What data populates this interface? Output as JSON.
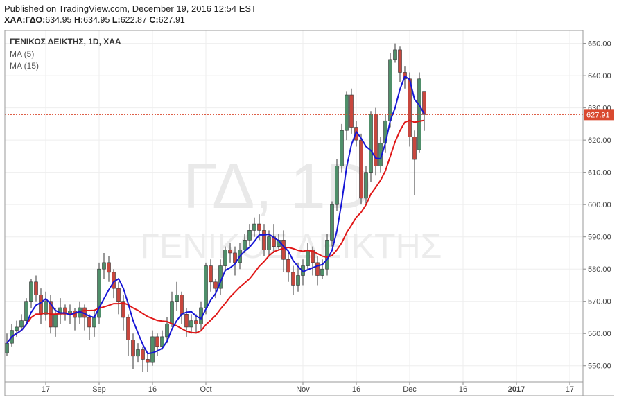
{
  "header": {
    "published": "Published on TradingView.com, December 19, 2016 12:54 EST",
    "symbol": "ΧΑΑ:ΓΔΟ",
    "open": "634.95",
    "high": "634.95",
    "low": "622.87",
    "close": "627.91",
    "open_label": "",
    "high_label": "H:",
    "low_label": "L:",
    "close_label": "C:"
  },
  "legend": {
    "title": "ΓΕΝΙΚΟΣ ΔΕΙΚΤΗΣ, 1D, ΧΑΑ",
    "ma5": "MA (5)",
    "ma15": "MA (15)"
  },
  "watermark": {
    "line1": "ΓΔ, 1D",
    "line2": "ΓΕΝΙΚΟΣ ΔΕΙΚΤΗΣ"
  },
  "colors": {
    "up": "#4f8f6a",
    "down": "#c8473e",
    "ma5": "#1515d6",
    "ma15": "#e01717",
    "price_tag": "#d9492f"
  },
  "chart_data": {
    "type": "candlestick",
    "ylim": [
      545,
      654
    ],
    "yticks": [
      550,
      560,
      570,
      580,
      590,
      600,
      610,
      620,
      630,
      640,
      650
    ],
    "ytick_labels": [
      "550.00",
      "560.00",
      "570.00",
      "580.00",
      "590.00",
      "600.00",
      "610.00",
      "620.00",
      "630.00",
      "640.00",
      "650.00"
    ],
    "xtick_labels": [
      "17",
      "Sep",
      "16",
      "Oct",
      "Nov",
      "16",
      "Dec",
      "16",
      "2017",
      "17"
    ],
    "xtick_index": [
      8,
      19,
      30,
      41,
      61,
      72,
      83,
      94,
      105,
      116
    ],
    "last_price": 627.91,
    "last_price_label": "627.91",
    "candles": [
      [
        554,
        557,
        553,
        560
      ],
      [
        557,
        561,
        556,
        563
      ],
      [
        561,
        562,
        559,
        564
      ],
      [
        562,
        564,
        561,
        566
      ],
      [
        564,
        570,
        563,
        571
      ],
      [
        570,
        576,
        568,
        577
      ],
      [
        576,
        572,
        570,
        578
      ],
      [
        572,
        566,
        563,
        574
      ],
      [
        566,
        570,
        564,
        573
      ],
      [
        570,
        562,
        560,
        572
      ],
      [
        562,
        566,
        559,
        568
      ],
      [
        566,
        568,
        563,
        571
      ],
      [
        568,
        566,
        564,
        569
      ],
      [
        566,
        567,
        563,
        569
      ],
      [
        567,
        565,
        561,
        568
      ],
      [
        565,
        568,
        563,
        570
      ],
      [
        568,
        565,
        561,
        569
      ],
      [
        565,
        562,
        558,
        566
      ],
      [
        562,
        565,
        559,
        567
      ],
      [
        565,
        580,
        563,
        582
      ],
      [
        580,
        582,
        577,
        585
      ],
      [
        582,
        579,
        576,
        584
      ],
      [
        579,
        574,
        571,
        580
      ],
      [
        574,
        570,
        566,
        576
      ],
      [
        570,
        565,
        561,
        572
      ],
      [
        565,
        558,
        553,
        566
      ],
      [
        558,
        553,
        549,
        560
      ],
      [
        553,
        555,
        551,
        557
      ],
      [
        555,
        552,
        548,
        556
      ],
      [
        552,
        551,
        548,
        554
      ],
      [
        551,
        559,
        550,
        561
      ],
      [
        559,
        556,
        553,
        560
      ],
      [
        556,
        559,
        555,
        561
      ],
      [
        559,
        563,
        557,
        565
      ],
      [
        563,
        570,
        562,
        573
      ],
      [
        570,
        572,
        567,
        576
      ],
      [
        572,
        566,
        563,
        573
      ],
      [
        566,
        562,
        559,
        568
      ],
      [
        562,
        564,
        560,
        566
      ],
      [
        564,
        563,
        560,
        566
      ],
      [
        563,
        568,
        561,
        570
      ],
      [
        568,
        581,
        566,
        582
      ],
      [
        581,
        576,
        573,
        583
      ],
      [
        576,
        574,
        571,
        577
      ],
      [
        574,
        581,
        572,
        583
      ],
      [
        581,
        586,
        579,
        587
      ],
      [
        586,
        585,
        582,
        588
      ],
      [
        585,
        582,
        578,
        587
      ],
      [
        582,
        586,
        580,
        588
      ],
      [
        586,
        589,
        585,
        591
      ],
      [
        589,
        592,
        587,
        594
      ],
      [
        592,
        594,
        590,
        596
      ],
      [
        594,
        592,
        589,
        597
      ],
      [
        592,
        586,
        584,
        594
      ],
      [
        586,
        590,
        584,
        592
      ],
      [
        590,
        587,
        585,
        594
      ],
      [
        587,
        589,
        586,
        591
      ],
      [
        589,
        583,
        579,
        592
      ],
      [
        583,
        579,
        576,
        585
      ],
      [
        579,
        575,
        572,
        581
      ],
      [
        575,
        578,
        573,
        582
      ],
      [
        578,
        581,
        575,
        583
      ],
      [
        581,
        586,
        580,
        588
      ],
      [
        586,
        582,
        578,
        587
      ],
      [
        582,
        578,
        575,
        584
      ],
      [
        578,
        580,
        577,
        583
      ],
      [
        580,
        589,
        578,
        591
      ],
      [
        589,
        600,
        587,
        601
      ],
      [
        600,
        612,
        598,
        614
      ],
      [
        612,
        623,
        610,
        625
      ],
      [
        623,
        634,
        620,
        635
      ],
      [
        634,
        624,
        622,
        636
      ],
      [
        624,
        620,
        618,
        626
      ],
      [
        620,
        602,
        600,
        622
      ],
      [
        602,
        610,
        600,
        612
      ],
      [
        610,
        628,
        607,
        629
      ],
      [
        628,
        612,
        609,
        630
      ],
      [
        612,
        619,
        610,
        621
      ],
      [
        619,
        626,
        616,
        628
      ],
      [
        626,
        645,
        624,
        647
      ],
      [
        645,
        648,
        644,
        650
      ],
      [
        648,
        641,
        638,
        649
      ],
      [
        641,
        639,
        636,
        643
      ],
      [
        639,
        621,
        618,
        641
      ],
      [
        621,
        614,
        603,
        623
      ],
      [
        617,
        639,
        616,
        641
      ],
      [
        634.95,
        627.91,
        622.87,
        634.95
      ]
    ]
  }
}
